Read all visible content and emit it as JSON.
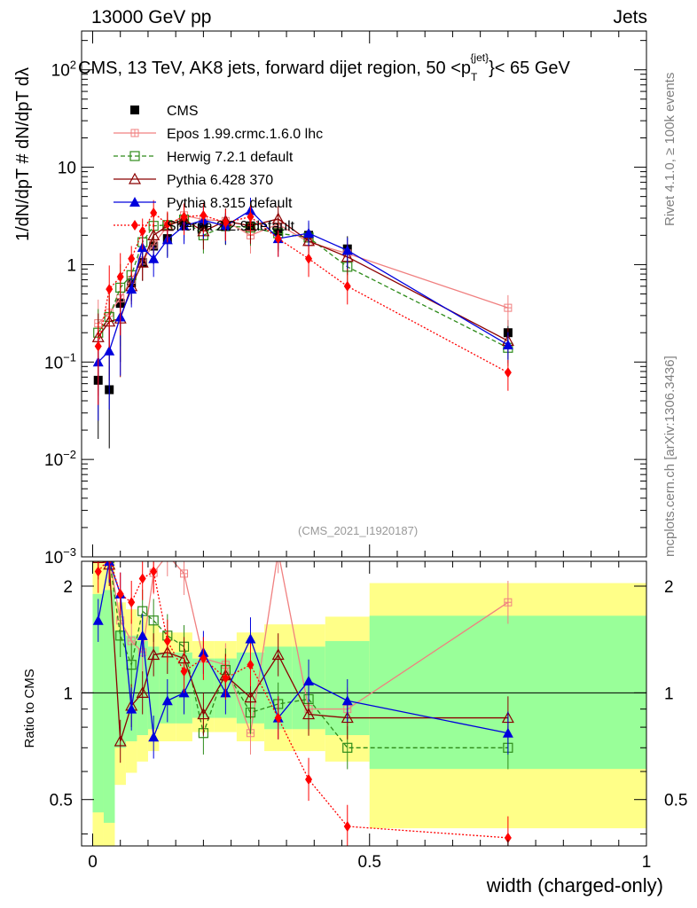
{
  "header": {
    "energy": "13000 GeV pp",
    "category": "Jets",
    "title": "CMS, 13 TeV, AK8 jets, forward dijet region, 50 <p",
    "title_sup": "{jet}",
    "title_sub": "T",
    "title_end": "}< 65 GeV",
    "rivet": "Rivet 4.1.0, ≥ 100k events",
    "mcplots": "mcplots.cern.ch [arXiv:1306.3436]",
    "analysis": "(CMS_2021_I1920187)"
  },
  "colors": {
    "CMS": "#000000",
    "Epos": "#f08080",
    "Herwig": "#2e8b1a",
    "Pythia6": "#8b0000",
    "Pythia8": "#0000dd",
    "Sherpa": "#ff0000",
    "band_yellow": "#ffff88",
    "band_green": "#99ff99"
  },
  "chart_data": {
    "type": "scatter",
    "title": "CMS, 13 TeV, AK8 jets, forward dijet region, 50 <pT{jet}< 65 GeV",
    "xlabel": "width (charged-only)",
    "ylabel": "1/dN/dpT # dN/dpT dλ",
    "ratio_ylabel": "Ratio to CMS",
    "xlim": [
      -0.02,
      1.0
    ],
    "ylim": [
      0.001,
      250
    ],
    "yscale": "log",
    "ratio_ylim": [
      0.37,
      2.35
    ],
    "xticks": [
      "0",
      "0.5",
      "1"
    ],
    "yticks": [
      "10^-3",
      "10^-2",
      "10^-1",
      "1",
      "10",
      "10^2"
    ],
    "ratio_yticks": [
      "0.5",
      "1",
      "2"
    ],
    "x": [
      0.01,
      0.03,
      0.05,
      0.07,
      0.09,
      0.11,
      0.135,
      0.165,
      0.2,
      0.24,
      0.285,
      0.335,
      0.39,
      0.46,
      0.75
    ],
    "series": [
      {
        "name": "CMS",
        "marker": "square",
        "values": [
          0.065,
          0.052,
          0.4,
          0.65,
          1.05,
          1.55,
          1.85,
          2.7,
          2.6,
          2.45,
          2.5,
          2.2,
          2.0,
          1.45,
          0.2
        ]
      },
      {
        "name": "Epos 1.99.crmc.1.6.0 lhc",
        "marker": "open-plus",
        "values": [
          0.25,
          0.32,
          0.45,
          0.7,
          1.1,
          1.6,
          2.5,
          3.2,
          2.9,
          2.8,
          2.0,
          2.6,
          1.7,
          1.3,
          0.36
        ],
        "ratio": [
          2.6,
          2.4,
          1.6,
          1.4,
          1.3,
          2.18,
          2.45,
          2.17,
          1.25,
          1.2,
          0.77,
          2.5,
          0.9,
          0.9,
          1.8
        ]
      },
      {
        "name": "Herwig 7.2.1 default",
        "marker": "open-square",
        "values": [
          0.2,
          0.29,
          0.58,
          0.78,
          1.7,
          2.5,
          2.55,
          2.9,
          2.0,
          2.5,
          2.4,
          2.1,
          1.9,
          0.95,
          0.14
        ],
        "ratio": [
          2.5,
          2.4,
          1.45,
          1.2,
          1.7,
          1.6,
          1.45,
          1.35,
          0.77,
          1.16,
          0.88,
          0.93,
          0.96,
          0.7,
          0.7
        ]
      },
      {
        "name": "Pythia 6.428 370",
        "marker": "open-triangle",
        "values": [
          0.18,
          0.26,
          0.28,
          0.6,
          1.05,
          2.0,
          2.5,
          2.9,
          2.2,
          2.8,
          2.5,
          2.95,
          1.75,
          1.2,
          0.165
        ],
        "ratio": [
          2.4,
          2.3,
          0.73,
          0.92,
          1.0,
          1.28,
          1.3,
          1.25,
          0.87,
          1.12,
          0.97,
          1.28,
          0.87,
          0.85,
          0.85
        ]
      },
      {
        "name": "Pythia 8.315 default",
        "marker": "filled-triangle",
        "values": [
          0.1,
          0.13,
          0.29,
          0.56,
          1.5,
          1.15,
          1.8,
          2.5,
          2.85,
          2.5,
          3.6,
          1.85,
          2.1,
          1.4,
          0.15
        ],
        "ratio": [
          1.6,
          2.35,
          1.9,
          0.9,
          1.45,
          0.75,
          0.95,
          1.0,
          1.3,
          1.0,
          1.42,
          0.85,
          1.08,
          0.95,
          0.77
        ]
      },
      {
        "name": "Sherpa 2.2.9 default",
        "marker": "filled-diamond",
        "values": [
          0.145,
          0.56,
          0.75,
          1.15,
          2.2,
          3.4,
          2.6,
          3.1,
          3.2,
          2.7,
          3.1,
          1.85,
          1.15,
          0.6,
          0.078
        ],
        "ratio": [
          2.2,
          2.4,
          1.9,
          1.8,
          2.1,
          2.2,
          1.4,
          1.15,
          1.25,
          1.1,
          1.2,
          0.85,
          0.57,
          0.42,
          0.39
        ]
      }
    ],
    "legend": [
      "CMS",
      "Epos 1.99.crmc.1.6.0 lhc",
      "Herwig 7.2.1 default",
      "Pythia 6.428 370",
      "Pythia 8.315 default",
      "Sherpa 2.2.9 default"
    ],
    "legend_position": "top-left"
  }
}
